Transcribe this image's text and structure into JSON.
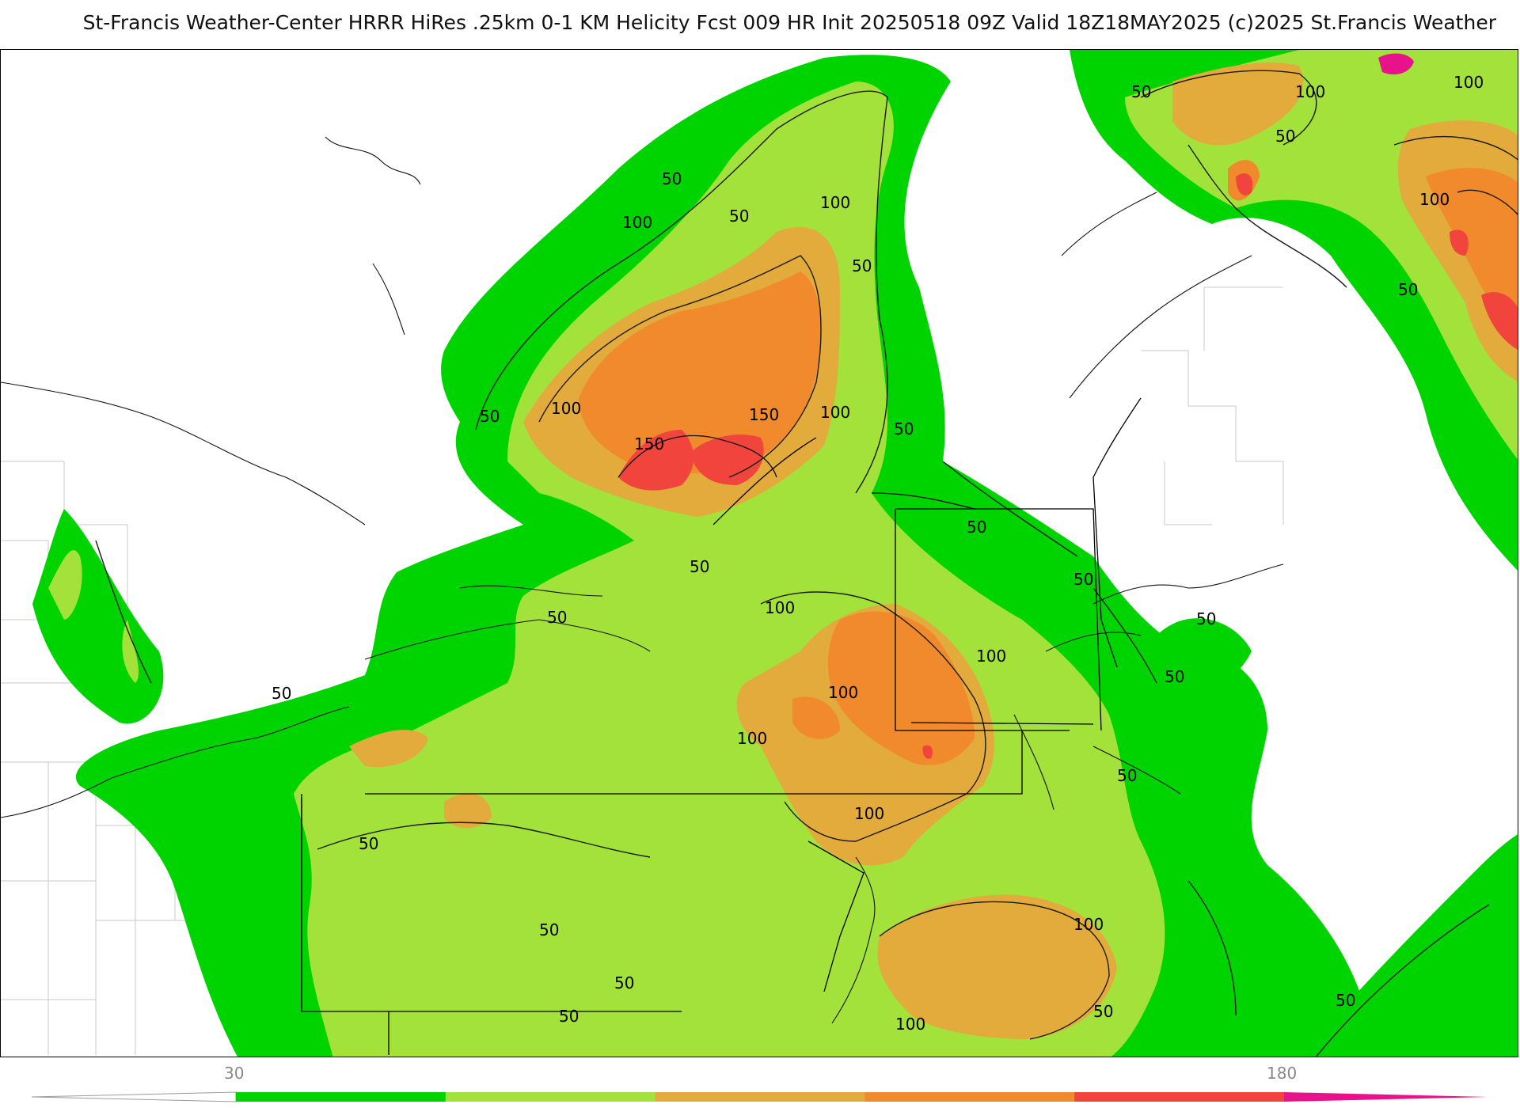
{
  "header": {
    "title": "St-Francis Weather-Center HRRR HiRes .25km 0-1 KM Helicity Fcst 009 HR Init 20250518 09Z  Valid 18Z18MAY2025    (c)2025 St.Francis Weather"
  },
  "contour_labels": [
    "50",
    "100",
    "150"
  ],
  "legend": {
    "min_label": "30",
    "max_label": "180",
    "colors": [
      "#00d400",
      "#a3e23b",
      "#e3aa3c",
      "#f08a2c",
      "#f0443d",
      "#e8138a"
    ]
  },
  "palette": {
    "level_30": "#00d400",
    "level_50": "#a3e23b",
    "level_80": "#e3aa3c",
    "level_100": "#f08a2c",
    "level_130": "#f0443d",
    "level_180": "#e8138a",
    "contour_line": "#1a1a1a",
    "border_line": "#000000",
    "county_line": "#bdbdbd"
  }
}
